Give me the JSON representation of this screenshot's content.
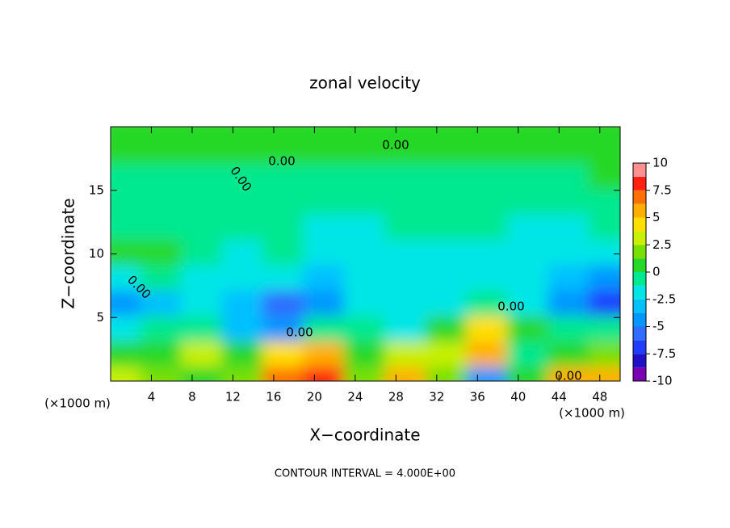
{
  "chart_data": {
    "type": "contour",
    "title": "zonal velocity",
    "xlabel": "X−coordinate",
    "ylabel": "Z−coordinate",
    "x_unit_label": "(×1000 m)",
    "y_unit_label": "(×1000 m)",
    "footer": "CONTOUR INTERVAL = 4.000E+00",
    "contour_labels": [
      "0.00",
      "0.00",
      "0.00",
      "0.00",
      "0.00",
      "0.00",
      "0.00"
    ],
    "xlim": [
      0,
      50
    ],
    "ylim": [
      0,
      20
    ],
    "xticks": [
      4,
      8,
      12,
      16,
      20,
      24,
      28,
      32,
      36,
      40,
      44,
      48
    ],
    "yticks": [
      5,
      10,
      15
    ],
    "x": [
      2,
      6,
      10,
      14,
      18,
      22,
      26,
      30,
      34,
      38,
      42,
      46,
      50
    ],
    "z": [
      1,
      3,
      5,
      7,
      9,
      11,
      13,
      15,
      17,
      19
    ],
    "values": [
      [
        3,
        2,
        1,
        2,
        7,
        8,
        2,
        5,
        2,
        -4,
        1,
        5,
        6
      ],
      [
        1,
        0,
        3,
        1,
        4,
        6,
        1,
        3,
        3,
        5,
        -1,
        1,
        2
      ],
      [
        -2,
        -1,
        -1,
        -3,
        -5,
        -1,
        -1,
        -2,
        1,
        4,
        0,
        -1,
        -1
      ],
      [
        -5,
        -3,
        -2,
        -3,
        -6,
        -4,
        -2,
        -2,
        -2,
        -1,
        -2,
        -4,
        -7
      ],
      [
        -2,
        -1,
        -2,
        -2,
        -2,
        -3,
        -2,
        -2,
        -2,
        -2,
        -2,
        -3,
        -4
      ],
      [
        0.5,
        0,
        -1,
        -1.5,
        -1,
        -2,
        -1.5,
        -1.5,
        -1.5,
        -1.5,
        -2,
        -2,
        -2
      ],
      [
        -0.5,
        -0.5,
        -1,
        -1,
        -1,
        -1.5,
        -1.5,
        -1,
        -1,
        -1,
        -1.5,
        -1.5,
        -1
      ],
      [
        -1,
        -1,
        -0.5,
        -1,
        -1,
        -1,
        -1,
        -0.5,
        -1,
        -1,
        -1,
        -1,
        -0.5
      ],
      [
        -0.5,
        -0.5,
        -0.5,
        -1,
        -1,
        -1,
        -0.5,
        -0.5,
        -0.5,
        -0.5,
        -0.5,
        -0.5,
        0
      ],
      [
        0.5,
        0.5,
        0.5,
        0.5,
        0.5,
        0.5,
        0.5,
        0.5,
        0.5,
        0.5,
        0.5,
        0.5,
        0.5
      ]
    ],
    "color_levels": [
      -10,
      -8.75,
      -7.5,
      -6.25,
      -5,
      -3.75,
      -2.5,
      -1.25,
      0,
      1.25,
      2.5,
      3.75,
      5,
      6.25,
      7.5,
      8.75,
      10
    ],
    "colors": [
      "#7a00b4",
      "#2010c8",
      "#1f3cff",
      "#2f6cff",
      "#0096ff",
      "#00c0ff",
      "#00e6e6",
      "#00e890",
      "#28d828",
      "#78e000",
      "#c8f000",
      "#ffe000",
      "#ffb000",
      "#ff7000",
      "#ff2010",
      "#ff9090"
    ],
    "colorbar_ticks": [
      -10,
      -7.5,
      -5,
      -2.5,
      0,
      2.5,
      5,
      7.5,
      10
    ]
  }
}
